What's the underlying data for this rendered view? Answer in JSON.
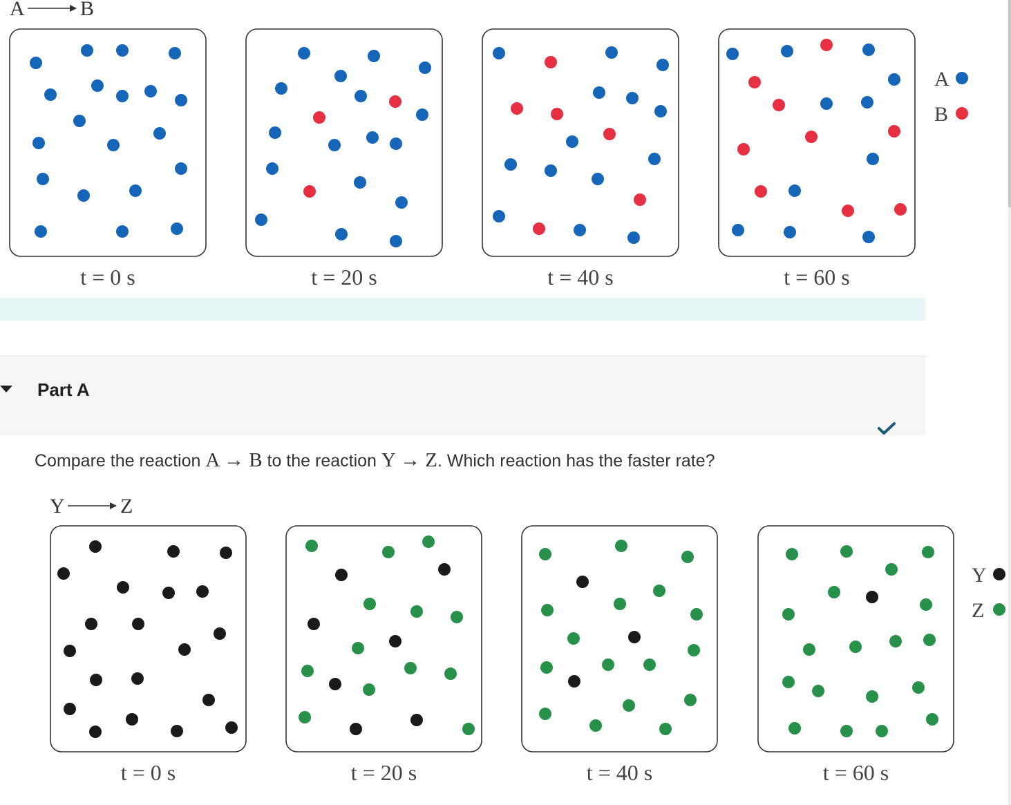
{
  "colors": {
    "blue": "#1565b8",
    "red": "#e63041",
    "black": "#1a1a1a",
    "green": "#27914a",
    "strip": "#e6f6f6",
    "check": "#1b5a7c",
    "box_stroke": "#333333"
  },
  "reaction_ab": {
    "title_left": "A",
    "title_right": "B",
    "legend": [
      {
        "label": "A",
        "color": "#1565b8"
      },
      {
        "label": "B",
        "color": "#e63041"
      }
    ],
    "panels": [
      {
        "label": "t = 0 s",
        "reactant_count": 20,
        "product_count": 0
      },
      {
        "label": "t = 20 s",
        "reactant_count": 17,
        "product_count": 3
      },
      {
        "label": "t = 40 s",
        "reactant_count": 14,
        "product_count": 6
      },
      {
        "label": "t = 60 s",
        "reactant_count": 11,
        "product_count": 9
      }
    ]
  },
  "part_a": {
    "title": "Part A",
    "status_icon": "checkmark-icon",
    "question": {
      "before": "Compare the reaction ",
      "reaction1": "A → B",
      "middle": " to the reaction ",
      "reaction2": "Y → Z",
      "after": ". Which reaction has the faster rate?"
    }
  },
  "reaction_yz": {
    "title_left": "Y",
    "title_right": "Z",
    "legend": [
      {
        "label": "Y",
        "color": "#1a1a1a"
      },
      {
        "label": "Z",
        "color": "#27914a"
      }
    ],
    "panels": [
      {
        "label": "t = 0 s",
        "reactant_count": 20,
        "product_count": 0
      },
      {
        "label": "t = 20 s",
        "reactant_count": 7,
        "product_count": 13
      },
      {
        "label": "t = 40 s",
        "reactant_count": 3,
        "product_count": 17
      },
      {
        "label": "t = 60 s",
        "reactant_count": 1,
        "product_count": 19
      }
    ]
  }
}
